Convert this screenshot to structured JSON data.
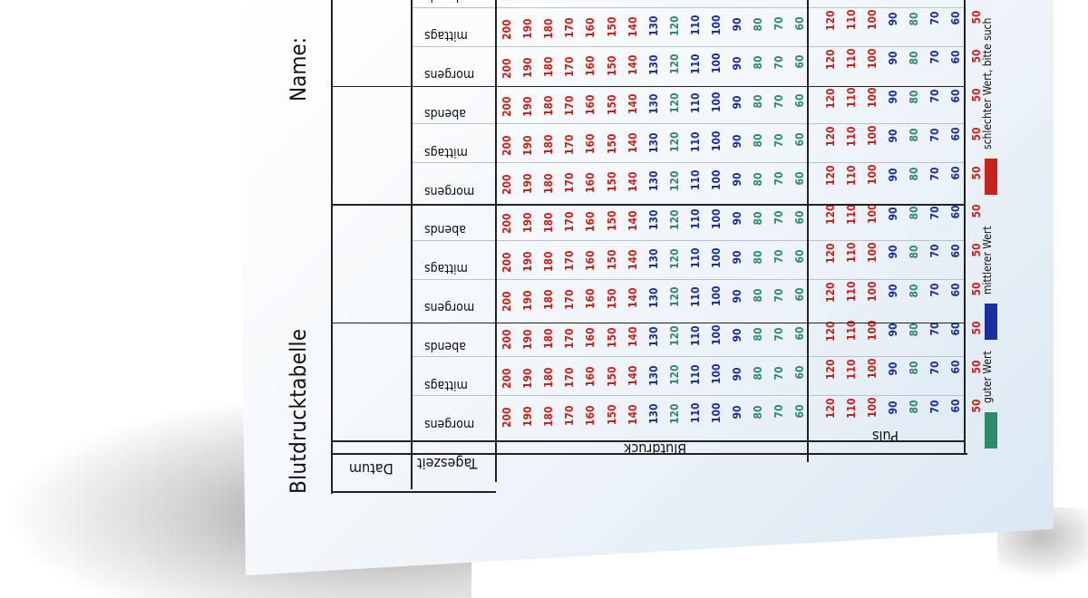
{
  "sheet_title": "Blutdrucktabelle",
  "name_label": "Name:",
  "headers": {
    "datum": "Datum",
    "tageszeit": "Tageszeit",
    "blutdruck": "Blutdruck",
    "puls": "Puls"
  },
  "times_of_day": [
    "morgens",
    "mittags",
    "abends"
  ],
  "blutdruck_values": [
    200,
    190,
    180,
    170,
    160,
    150,
    140,
    130,
    120,
    110,
    100,
    90,
    80,
    70,
    60
  ],
  "puls_values": [
    120,
    110,
    100,
    90,
    80,
    70,
    60,
    50
  ],
  "legend": {
    "good": {
      "label": "guter Wert",
      "color": "#2e8b6a"
    },
    "medium": {
      "label": "mittlerer Wert",
      "color": "#1a2fa0"
    },
    "bad": {
      "label": "schlechter Wert, bitte such",
      "color": "#c8231b"
    }
  },
  "colors": {
    "good": "#2e8b6a",
    "medium": "#1a2fa0",
    "bad": "#c8231b"
  }
}
